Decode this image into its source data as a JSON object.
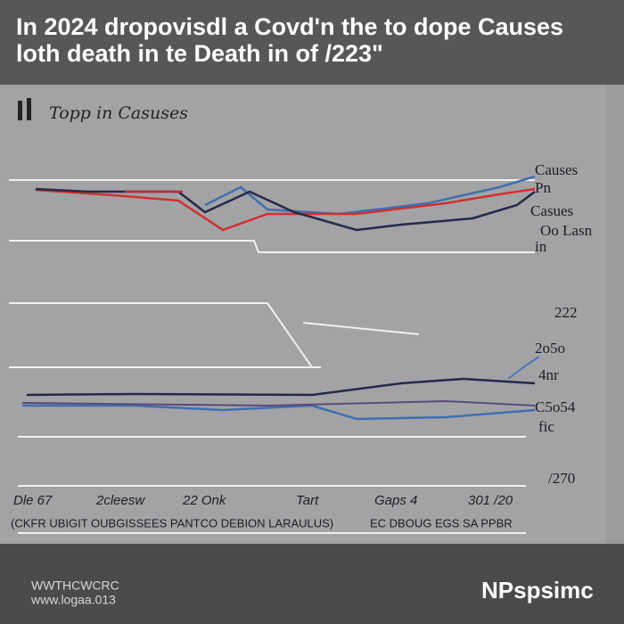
{
  "header": {
    "title": [
      "In 2024 dropovisdl a Covd'n the to dope Causes",
      "loth death in te Death in of /223\""
    ]
  },
  "panel": {
    "subtitle": "Topp in Casuses",
    "upper_labels": [
      "Causes",
      "Pn",
      "Casues",
      "Oo Lasn",
      "in"
    ],
    "lower_labels": [
      "222",
      "2o5o",
      "4nr",
      "C5o54",
      "fic",
      "/270"
    ],
    "x_labels": [
      "Dle 67",
      "2cleesw",
      "22 Onk",
      "Tart",
      "Gaps 4",
      "301 /20"
    ],
    "footnotes": [
      "(CKFR UBIGIT OUBGISSEES PANTCO DEBION LARAULUS)",
      "EC DBOUG EGS SA PPBR"
    ]
  },
  "footer": {
    "source": [
      "WWTHCWCRC",
      "www.logaa.013"
    ],
    "brand": "NPspsimc"
  }
}
